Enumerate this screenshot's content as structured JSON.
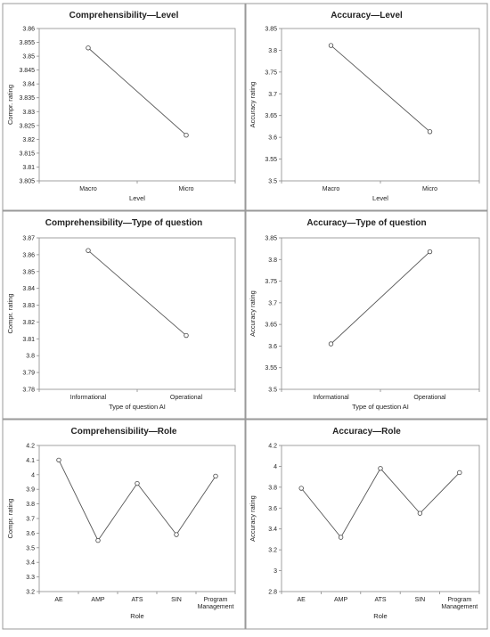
{
  "chart_data": [
    {
      "type": "line",
      "title": "Comprehensibility—Level",
      "xlabel": "Level",
      "ylabel": "Compr. rating",
      "categories": [
        "Macro",
        "Micro"
      ],
      "values": [
        3.853,
        3.8215
      ],
      "ylim": [
        3.805,
        3.86
      ],
      "yticks": [
        "3.805",
        "3.81",
        "3.815",
        "3.82",
        "3.825",
        "3.83",
        "3.835",
        "3.84",
        "3.845",
        "3.85",
        "3.855",
        "3.86"
      ],
      "grid": false
    },
    {
      "type": "line",
      "title": "Accuracy—Level",
      "xlabel": "Level",
      "ylabel": "Accuracy rating",
      "categories": [
        "Macro",
        "Micro"
      ],
      "values": [
        3.811,
        3.613
      ],
      "ylim": [
        3.5,
        3.85
      ],
      "yticks": [
        "3.5",
        "3.55",
        "3.6",
        "3.65",
        "3.7",
        "3.75",
        "3.8",
        "3.85"
      ],
      "grid": false
    },
    {
      "type": "line",
      "title": "Comprehensibility—Type of question",
      "xlabel": "Type of question AI",
      "ylabel": "Compr. rating",
      "categories": [
        "Informational",
        "Operational"
      ],
      "values": [
        3.8625,
        3.812
      ],
      "ylim": [
        3.78,
        3.87
      ],
      "yticks": [
        "3.78",
        "3.79",
        "3.8",
        "3.81",
        "3.82",
        "3.83",
        "3.84",
        "3.85",
        "3.86",
        "3.87"
      ],
      "grid": false
    },
    {
      "type": "line",
      "title": "Accuracy—Type of question",
      "xlabel": "Type of question AI",
      "ylabel": "Accuracy rating",
      "categories": [
        "Informational",
        "Operational"
      ],
      "values": [
        3.605,
        3.818
      ],
      "ylim": [
        3.5,
        3.85
      ],
      "yticks": [
        "3.5",
        "3.55",
        "3.6",
        "3.65",
        "3.7",
        "3.75",
        "3.8",
        "3.85"
      ],
      "grid": false
    },
    {
      "type": "line",
      "title": "Comprehensibility—Role",
      "xlabel": "Role",
      "ylabel": "Compr. rating",
      "categories": [
        "AE",
        "AMP",
        "ATS",
        "SIN",
        "Program\nManagement"
      ],
      "values": [
        4.1,
        3.55,
        3.94,
        3.59,
        3.99
      ],
      "ylim": [
        3.2,
        4.2
      ],
      "yticks": [
        "3.2",
        "3.3",
        "3.4",
        "3.5",
        "3.6",
        "3.7",
        "3.8",
        "3.9",
        "4",
        "4.1",
        "4.2"
      ],
      "grid": false
    },
    {
      "type": "line",
      "title": "Accuracy—Role",
      "xlabel": "Role",
      "ylabel": "Accuracy rating",
      "categories": [
        "AE",
        "AMP",
        "ATS",
        "SIN",
        "Program\nManagement"
      ],
      "values": [
        3.79,
        3.32,
        3.98,
        3.55,
        3.94
      ],
      "ylim": [
        2.8,
        4.2
      ],
      "yticks": [
        "2.8",
        "3",
        "3.2",
        "3.4",
        "3.6",
        "3.8",
        "4",
        "4.2"
      ],
      "grid": false
    }
  ]
}
